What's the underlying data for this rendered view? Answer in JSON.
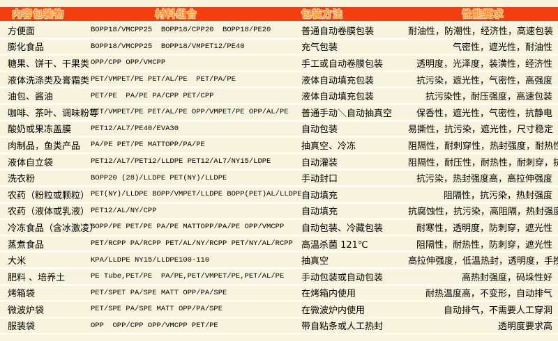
{
  "header": {
    "item": "内容包装物",
    "materials": "材料组合",
    "method": "包装方法",
    "performance": "性能要求"
  },
  "colors": {
    "header_bg": "#F53D0D",
    "header_text": "#FF9429",
    "header_outline": "#FFDDBE",
    "row_bg": "#F8F3DC",
    "separator": "#FFFEF2",
    "body_text": "#000000"
  },
  "rows": [
    {
      "item": "方便面",
      "materials": "BOPP18/VMCPP25  BOPP18/CPP20  BOPP18/PE20",
      "method": "普通自动卷膜包装",
      "performance": "耐油性，防潮性，经济性，高速包装"
    },
    {
      "item": "膨化食品",
      "materials": "BOPP18/VMCPP25  BOPP18/VMPET12/PE40",
      "method": "充气包装",
      "performance": "气密性，遮光性，耐油性"
    },
    {
      "item": "糖果、饼干、干果类",
      "materials": "OPP/CPP OPP/VMCPP",
      "method": "手工或自动卷膜包装",
      "performance": "透明度，光泽度，装潢性，经济性"
    },
    {
      "item": "液体洗涤类及膏霜类",
      "materials": "PET/VMPET/PE PET/AL/PE  PET/PA/PE",
      "method": "液体自动填充包装",
      "performance": "抗污染，遮光性，气密性，高强度"
    },
    {
      "item": "油包、酱油",
      "materials": "PET/PE  PA/PE PA/CPP PET/CPP",
      "method": "液体自动填充包装",
      "performance": "抗污染性，耐压强度，高速包装"
    },
    {
      "item": "咖啡、茶叶、调味粉等",
      "materials": "PET/VMPET/PE PET/AL/PE OPP/VMPET/PE OPP/AL/PE",
      "method": "普通手动＼自动抽真空",
      "performance": "保香性，遮光性，气密性，抗静电"
    },
    {
      "item": "酸奶或果冻盖膜",
      "materials": "PET12/AL7/PE40/EVA30",
      "method": "自动包装",
      "performance": "易撕性，抗污染，遮光性，尺寸稳定"
    },
    {
      "item": "肉制品，鱼类产品",
      "materials": "PA/PE PET/PE MATTOPP/PA/PE",
      "method": "抽真空、冷冻",
      "performance": "阻隔性，耐刺穿性，热封强度，耐热性"
    },
    {
      "item": "液体自立袋",
      "materials": "PET12/AL7/PET12/LLDPE PET12/AL7/NY15/LDPE",
      "method": "自动灌装",
      "performance": "阻隔性，耐压性，耐热性，耐刺穿，抗污染"
    },
    {
      "item": "洗衣粉",
      "materials": "BOPP20 (28)/LLDPE PET(NY)/LLDPE",
      "method": "手动封口",
      "performance": "抗污染，热封强度高，高拉伸强度"
    },
    {
      "item": "农药（粉粒或颗粒）",
      "materials": "PET(NY)/LLDPE BOPP/VMPET/LLDPE BOPP(PET)AL/LLDPE",
      "method": "自动填充",
      "performance": "阻隔性，抗污染，热封强度"
    },
    {
      "item": "农药（液体或乳液）",
      "materials": "PET12/AL/NY/CPP",
      "method": "自动填充",
      "performance": "抗腐蚀性，抗污染，高阻隔，热封强度"
    },
    {
      "item": "冷冻食品（含冰激凌）",
      "materials": "BOPP/PE PET/PE PA/PE MATTOPP/PA/PE OPP/VMCPP",
      "method": "自动包装、冷藏包装",
      "performance": "耐寒性，透明度，防刺穿，遮光性"
    },
    {
      "item": "蒸煮食品",
      "materials": "PET/RCPP PA/RCPP PET/AL/NY/RCPP PET/NY/AL/RCPP",
      "method": "高温杀菌 121℃",
      "performance": "阻隔性，耐热性，防刺穿，遮光性"
    },
    {
      "item": "大米",
      "materials": "KPA/LLDPE NY15/LLDPE100-110",
      "method": "抽真空",
      "performance": "高拉伸强度，低温热封，透明度，手挽强度高"
    },
    {
      "item": "肥料 、培养土",
      "materials": "PE Tube,PET/PE  PA/PE,PET/VMPET/PE,PET/AL/PE",
      "method": "手动包装或自动包装",
      "performance": "高热封强度，码垛性好"
    },
    {
      "item": "烤箱袋",
      "materials": "PET/SPET PA/SPE MATT OPP/PA/SPE",
      "method": "在烤箱内使用",
      "performance": "耐热温度高，不变形，自动排气"
    },
    {
      "item": "微波炉袋",
      "materials": "PET/SPE PA/SPE MATT OPP/PA/SPE",
      "method": "在微波炉内使用",
      "performance": "自动排气，不需要人工穿洞"
    },
    {
      "item": "服装袋",
      "materials": "OPP  OPP/CPP OPP/VMCPP PET/PE",
      "method": "带自粘条或人工热封",
      "performance": "透明度要求高"
    }
  ]
}
